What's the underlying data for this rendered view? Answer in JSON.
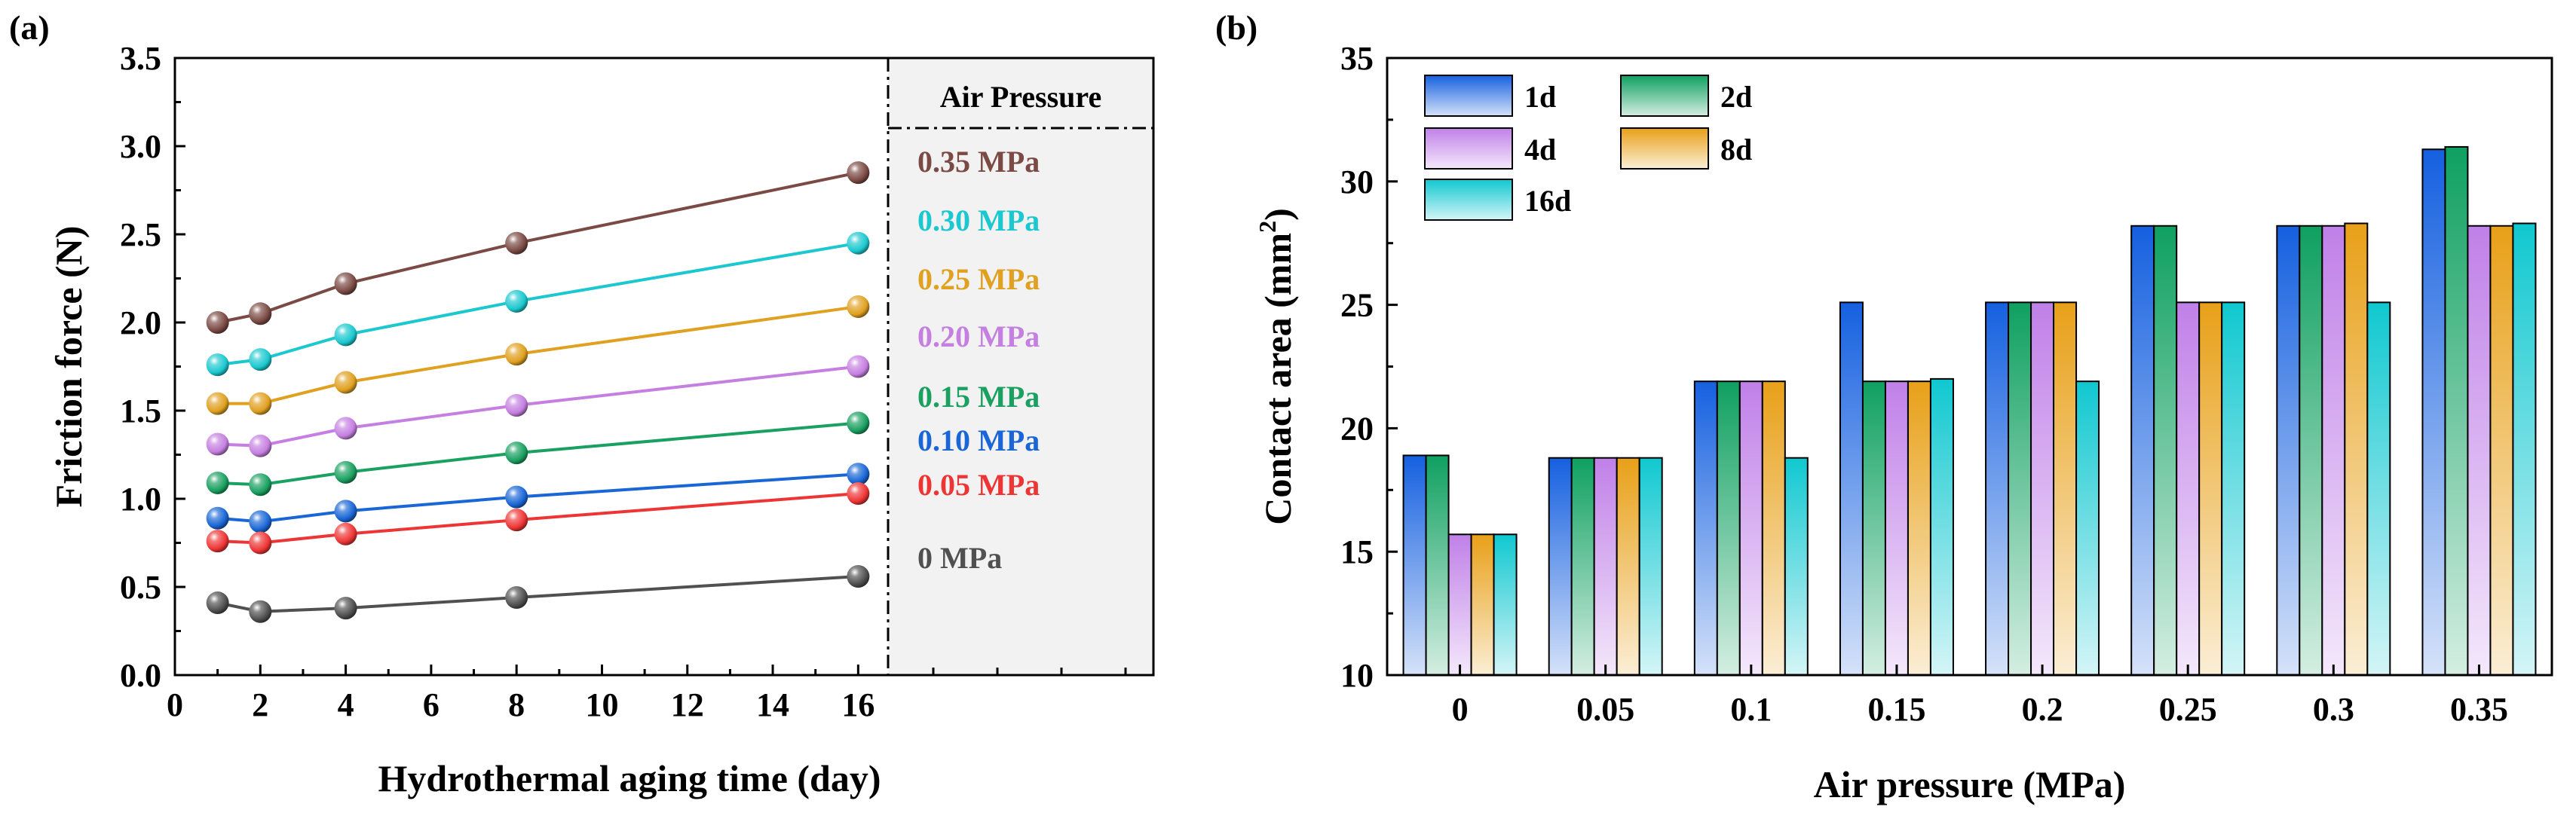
{
  "chart_data": [
    {
      "panel_label": "(a)",
      "type": "line",
      "xlabel": "Hydrothermal aging time (day)",
      "ylabel": "Friction force (N)",
      "xlim": [
        0,
        16.7
      ],
      "ylim": [
        0,
        3.5
      ],
      "x_ticks": [
        "0",
        "2",
        "4",
        "6",
        "8",
        "10",
        "12",
        "14",
        "16"
      ],
      "y_ticks": [
        "0.0",
        "0.5",
        "1.0",
        "1.5",
        "2.0",
        "2.5",
        "3.0",
        "3.5"
      ],
      "x": [
        1,
        2,
        4,
        8,
        16
      ],
      "legend_title": "Air Pressure",
      "legend_placement": "right",
      "series": [
        {
          "name": "0.35 MPa",
          "color": "#7b4a44",
          "values": [
            2.0,
            2.05,
            2.22,
            2.45,
            2.85
          ]
        },
        {
          "name": "0.30 MPa",
          "color": "#1bc8cf",
          "values": [
            1.76,
            1.79,
            1.93,
            2.12,
            2.45
          ]
        },
        {
          "name": "0.25 MPa",
          "color": "#e0a020",
          "values": [
            1.54,
            1.54,
            1.66,
            1.82,
            2.09
          ]
        },
        {
          "name": "0.20 MPa",
          "color": "#c57fe0",
          "values": [
            1.31,
            1.3,
            1.4,
            1.53,
            1.75
          ]
        },
        {
          "name": "0.15 MPa",
          "color": "#1aa060",
          "values": [
            1.09,
            1.08,
            1.15,
            1.26,
            1.43
          ]
        },
        {
          "name": "0.10 MPa",
          "color": "#1a66d6",
          "values": [
            0.89,
            0.87,
            0.93,
            1.01,
            1.14
          ]
        },
        {
          "name": "0.05 MPa",
          "color": "#ee3535",
          "values": [
            0.76,
            0.75,
            0.8,
            0.88,
            1.03
          ]
        },
        {
          "name": "0 MPa",
          "color": "#505050",
          "values": [
            0.41,
            0.36,
            0.38,
            0.44,
            0.56
          ]
        }
      ]
    },
    {
      "panel_label": "(b)",
      "type": "bar",
      "xlabel": "Air pressure (MPa)",
      "ylabel": "Contact area (mm²)",
      "ylim": [
        10,
        35
      ],
      "y_ticks": [
        "10",
        "15",
        "20",
        "25",
        "30",
        "35"
      ],
      "categories": [
        "0",
        "0.05",
        "0.1",
        "0.15",
        "0.2",
        "0.25",
        "0.3",
        "0.35"
      ],
      "legend_placement": "top-left",
      "series": [
        {
          "name": "1d",
          "color": "#1560e0",
          "values": [
            18.9,
            18.8,
            21.9,
            25.1,
            25.1,
            28.2,
            28.2,
            31.3
          ]
        },
        {
          "name": "2d",
          "color": "#0fa060",
          "values": [
            18.9,
            18.8,
            21.9,
            21.9,
            25.1,
            28.2,
            28.2,
            31.4
          ]
        },
        {
          "name": "4d",
          "color": "#c080e8",
          "values": [
            15.7,
            18.8,
            21.9,
            21.9,
            25.1,
            25.1,
            28.2,
            28.2
          ]
        },
        {
          "name": "8d",
          "color": "#e8a018",
          "values": [
            15.7,
            18.8,
            21.9,
            21.9,
            25.1,
            25.1,
            28.3,
            28.2
          ]
        },
        {
          "name": "16d",
          "color": "#10c8d0",
          "values": [
            15.7,
            18.8,
            18.8,
            22.0,
            21.9,
            25.1,
            25.1,
            28.3
          ]
        }
      ]
    }
  ]
}
